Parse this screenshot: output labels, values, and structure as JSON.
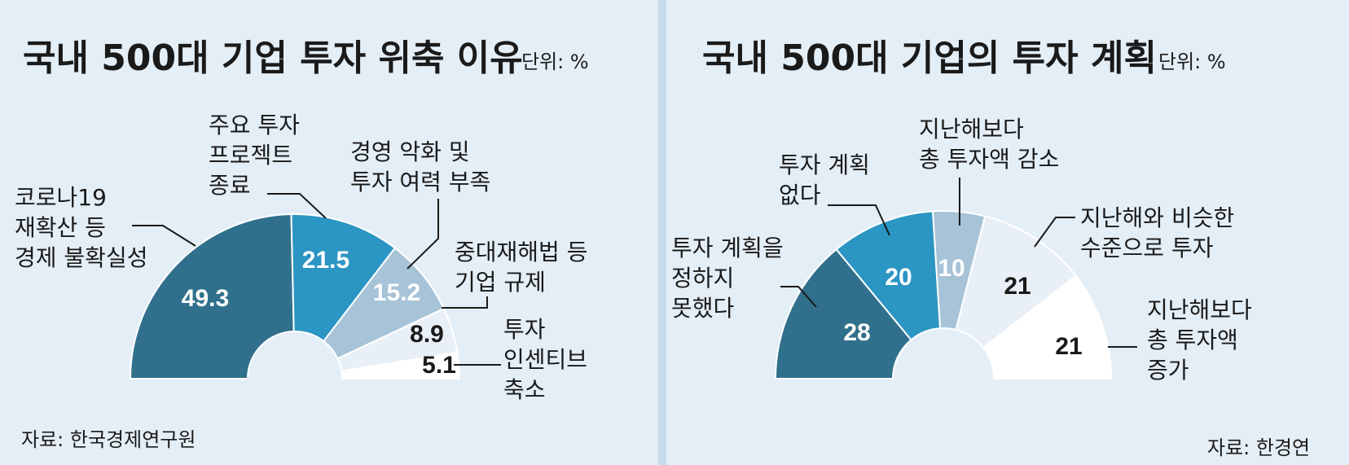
{
  "colors": {
    "background": "#e4eef6",
    "divider": "#c9dbe8",
    "dark": "#30708c",
    "mid": "#2b95c3",
    "light": "#a7c3d8",
    "pale": "#e8eff6",
    "white": "#ffffff",
    "text": "#1a1a1a"
  },
  "sources": {
    "left": "자료: 한국경제연구원",
    "right": "자료: 한경연"
  },
  "chart_data": [
    {
      "type": "pie",
      "subtype": "half-donut",
      "title": "국내 500대 기업 투자 위축 이유",
      "unit": "단위: %",
      "slices": [
        {
          "name": "코로나19 재확산 등 경제 불확실성",
          "label_lines": [
            "코로나19",
            "재확산 등",
            "경제 불확실성"
          ],
          "value": 49.3,
          "color": "#30708c",
          "value_text_color": "#ffffff"
        },
        {
          "name": "주요 투자 프로젝트 종료",
          "label_lines": [
            "주요 투자",
            "프로젝트",
            "종료"
          ],
          "value": 21.5,
          "color": "#2b95c3",
          "value_text_color": "#ffffff"
        },
        {
          "name": "경영 악화 및 투자 여력 부족",
          "label_lines": [
            "경영 악화 및",
            "투자 여력 부족"
          ],
          "value": 15.2,
          "color": "#a7c3d8",
          "value_text_color": "#ffffff"
        },
        {
          "name": "중대재해법 등 기업 규제",
          "label_lines": [
            "중대재해법 등",
            "기업 규제"
          ],
          "value": 8.9,
          "color": "#e8eff6",
          "value_text_color": "#1a1a1a"
        },
        {
          "name": "투자 인센티브 축소",
          "label_lines": [
            "투자",
            "인센티브",
            "축소"
          ],
          "value": 5.1,
          "color": "#ffffff",
          "value_text_color": "#1a1a1a"
        }
      ]
    },
    {
      "type": "pie",
      "subtype": "half-donut",
      "title": "국내 500대 기업의 투자 계획",
      "unit": "단위: %",
      "slices": [
        {
          "name": "투자 계획을 정하지 못했다",
          "label_lines": [
            "투자 계획을",
            "정하지",
            "못했다"
          ],
          "value": 28,
          "color": "#30708c",
          "value_text_color": "#ffffff"
        },
        {
          "name": "투자 계획 없다",
          "label_lines": [
            "투자 계획",
            "없다"
          ],
          "value": 20,
          "color": "#2b95c3",
          "value_text_color": "#ffffff"
        },
        {
          "name": "지난해보다 총 투자액 감소",
          "label_lines": [
            "지난해보다",
            "총 투자액 감소"
          ],
          "value": 10,
          "color": "#a7c3d8",
          "value_text_color": "#ffffff"
        },
        {
          "name": "지난해와 비슷한 수준으로 투자",
          "label_lines": [
            "지난해와 비슷한",
            "수준으로 투자"
          ],
          "value": 21,
          "color": "#e8eff6",
          "value_text_color": "#1a1a1a"
        },
        {
          "name": "지난해보다 총 투자액 증가",
          "label_lines": [
            "지난해보다",
            "총 투자액",
            "증가"
          ],
          "value": 21,
          "color": "#ffffff",
          "value_text_color": "#1a1a1a"
        }
      ]
    }
  ]
}
